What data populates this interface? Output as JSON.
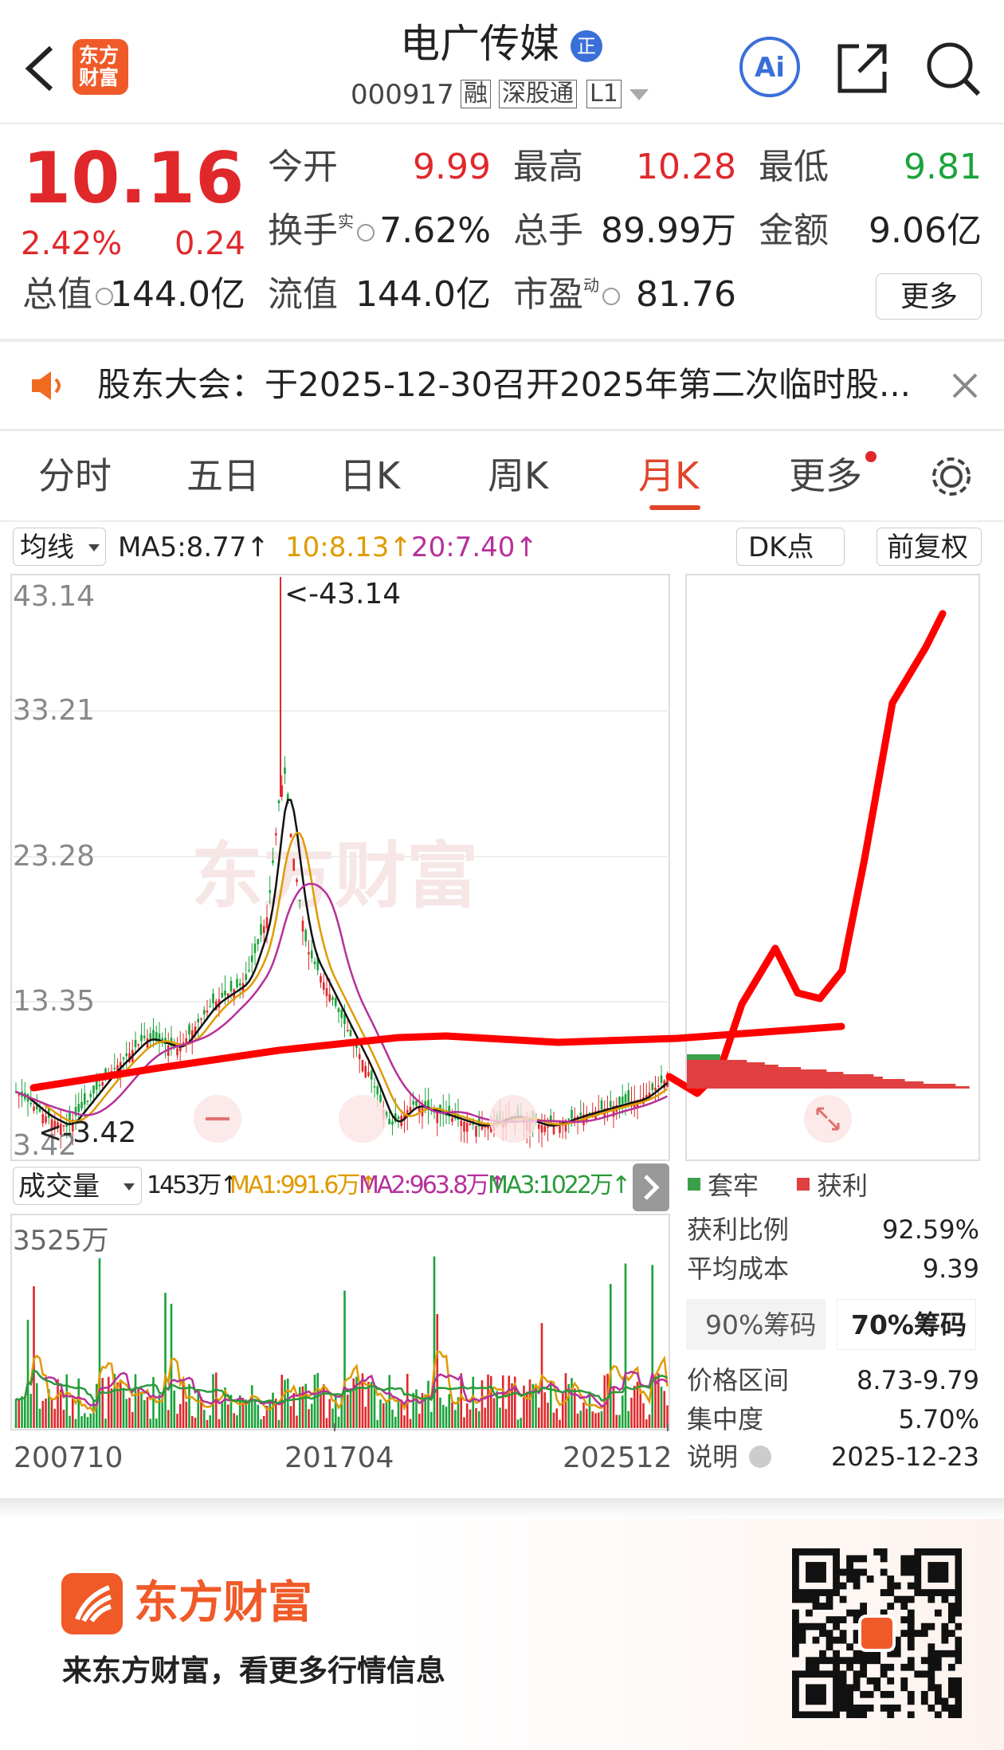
{
  "header": {
    "logo": [
      "东方",
      "财富"
    ],
    "title": "电广传媒",
    "badge": "正",
    "code": "000917",
    "tags": [
      "融",
      "深股通",
      "L1"
    ]
  },
  "quote": {
    "price": "10.16",
    "change_pct": "2.42%",
    "change": "0.24",
    "stats": [
      {
        "label": "今开",
        "value": "9.99"
      },
      {
        "label": "最高",
        "value": "10.28"
      },
      {
        "label": "最低",
        "value": "9.81"
      },
      {
        "label": "换手",
        "sup": "实",
        "value": "7.62%"
      },
      {
        "label": "总手",
        "value": "89.99万"
      },
      {
        "label": "金额",
        "value": "9.06亿"
      },
      {
        "label": "总值",
        "value": "144.0亿"
      },
      {
        "label": "流值",
        "value": "144.0亿"
      },
      {
        "label": "市盈",
        "sup": "动",
        "value": "81.76"
      }
    ],
    "more": "更多"
  },
  "notice": "股东大会：于2025-12-30召开2025年第二次临时股...",
  "tabs": [
    "分时",
    "五日",
    "日K",
    "周K",
    "月K",
    "更多"
  ],
  "active_tab": 4,
  "kline": {
    "indicator": "均线",
    "ma": [
      "MA5:8.77↑",
      "10:8.13↑",
      "20:7.40↑"
    ],
    "dk": "DK点",
    "adjust": "前复权",
    "yticks": [
      "43.14",
      "33.21",
      "23.28",
      "13.35",
      "3.42"
    ],
    "max_label": "<-43.14",
    "min_label": "<-3.42"
  },
  "volume": {
    "indicator": "成交量",
    "ma": [
      "1453万↑",
      "MA1:991.6万↑",
      "MA2:963.8万↑",
      "MA3:1022万↑"
    ],
    "max": "3525万",
    "xticks": [
      "200710",
      "201704",
      "202512"
    ]
  },
  "chips": {
    "legend": [
      "套牢",
      "获利"
    ],
    "rows": [
      {
        "label": "获利比例",
        "value": "92.59%"
      },
      {
        "label": "平均成本",
        "value": "9.39"
      }
    ],
    "buttons": [
      "90%筹码",
      "70%筹码"
    ],
    "rows2": [
      {
        "label": "价格区间",
        "value": "8.73-9.79"
      },
      {
        "label": "集中度",
        "value": "5.70%"
      },
      {
        "label": "说明",
        "value": "2025-12-23"
      }
    ]
  },
  "footer": {
    "brand": "东方财富",
    "tagline": "来东方财富，看更多行情信息"
  }
}
